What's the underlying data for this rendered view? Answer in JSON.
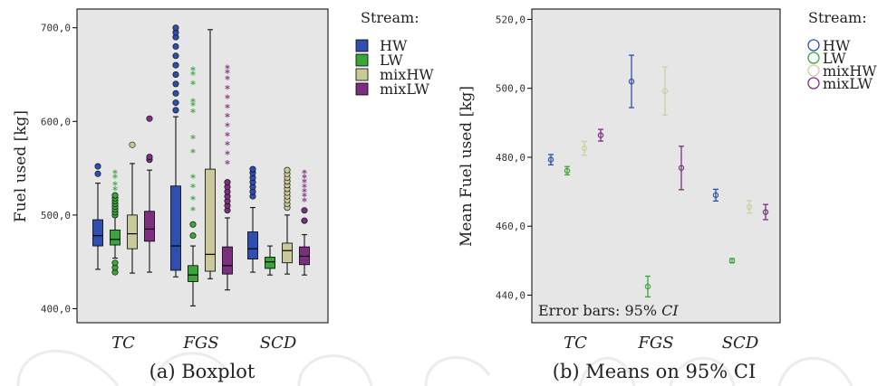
{
  "captions": {
    "a": "(a) Boxplot",
    "b": "(b) Means on 95% CI"
  },
  "chart_data": [
    {
      "type": "box",
      "ylabel": "Fuel used [kg]",
      "xlabel": "",
      "ylim": [
        385,
        720
      ],
      "yticks": [
        400,
        500,
        600,
        700
      ],
      "ytick_labels": [
        "400,0",
        "500,0",
        "600,0",
        "700,0"
      ],
      "categories": [
        "TC",
        "FGS",
        "SCD"
      ],
      "legend": {
        "title": "Stream:",
        "position": "right",
        "entries": [
          "HW",
          "LW",
          "mixHW",
          "mixLW"
        ]
      },
      "series_colors": {
        "HW": "#2f4fb0",
        "LW": "#3aa53a",
        "mixHW": "#c9c99a",
        "mixLW": "#7d2f7f"
      },
      "series": [
        {
          "name": "HW",
          "boxes": [
            {
              "min": 442,
              "q1": 467,
              "median": 478,
              "q3": 495,
              "max": 534,
              "outliers": [
                544,
                552
              ]
            },
            {
              "min": 434,
              "q1": 441,
              "median": 467,
              "q3": 531,
              "max": 605,
              "outliers": [
                612,
                620,
                630,
                640,
                650,
                660,
                670,
                680,
                690,
                695,
                700
              ]
            },
            {
              "min": 439,
              "q1": 453,
              "median": 464,
              "q3": 482,
              "max": 508,
              "outliers": [
                520,
                525,
                530,
                535,
                540,
                545,
                549
              ]
            }
          ]
        },
        {
          "name": "LW",
          "boxes": [
            {
              "min": 454,
              "q1": 468,
              "median": 474,
              "q3": 484,
              "max": 498,
              "outliers": [
                439,
                444,
                449,
                500,
                503,
                506,
                509,
                512,
                515,
                518,
                521
              ],
              "extremes": [
                527,
                532,
                540,
                545
              ]
            },
            {
              "min": 403,
              "q1": 429,
              "median": 436,
              "q3": 446,
              "max": 467,
              "outliers": [
                478,
                490
              ],
              "extremes": [
                505,
                517,
                530,
                540,
                567,
                582,
                610,
                617,
                621,
                640,
                650,
                655
              ]
            },
            {
              "min": 436,
              "q1": 443,
              "median": 450,
              "q3": 455,
              "max": 467,
              "outliers": [],
              "extremes": []
            }
          ]
        },
        {
          "name": "mixHW",
          "boxes": [
            {
              "min": 438,
              "q1": 464,
              "median": 480,
              "q3": 500,
              "max": 555,
              "outliers": [
                575
              ]
            },
            {
              "min": 432,
              "q1": 440,
              "median": 458,
              "q3": 549,
              "max": 698,
              "outliers": []
            },
            {
              "min": 437,
              "q1": 449,
              "median": 462,
              "q3": 470,
              "max": 500,
              "outliers": [
                508,
                512,
                516,
                520,
                524,
                528,
                532,
                536,
                540,
                544,
                548
              ]
            }
          ]
        },
        {
          "name": "mixLW",
          "boxes": [
            {
              "min": 439,
              "q1": 472,
              "median": 485,
              "q3": 504,
              "max": 548,
              "outliers": [
                559,
                562,
                603
              ]
            },
            {
              "min": 420,
              "q1": 437,
              "median": 446,
              "q3": 466,
              "max": 497,
              "outliers": [
                505,
                510,
                515,
                520,
                525,
                530,
                535
              ],
              "extremes": [
                555,
                565,
                575,
                585,
                595,
                605,
                615,
                625,
                635,
                645,
                652,
                657
              ]
            },
            {
              "min": 436,
              "q1": 447,
              "median": 456,
              "q3": 466,
              "max": 479,
              "outliers": [
                494,
                505
              ],
              "extremes": [
                515,
                520,
                525,
                530,
                535,
                540,
                545
              ]
            }
          ]
        }
      ]
    },
    {
      "type": "errorbar",
      "ylabel": "Mean Fuel used [kg]",
      "xlabel": "",
      "ylim": [
        432,
        523
      ],
      "yticks": [
        440,
        460,
        480,
        500,
        520
      ],
      "ytick_labels": [
        "440,0",
        "460,0",
        "480,0",
        "500,0",
        "520,0"
      ],
      "categories": [
        "TC",
        "FGS",
        "SCD"
      ],
      "annotation": {
        "text": "Error bars: 95% ",
        "ci": "CI"
      },
      "legend": {
        "title": "Stream:",
        "position": "right",
        "entries": [
          "HW",
          "LW",
          "mixHW",
          "mixLW"
        ]
      },
      "series": [
        {
          "name": "HW",
          "means": [
            479.3,
            502.0,
            469.0
          ],
          "ci_low": [
            477.8,
            494.4,
            467.3
          ],
          "ci_high": [
            480.8,
            509.6,
            470.7
          ]
        },
        {
          "name": "LW",
          "means": [
            476.1,
            442.5,
            450.0
          ],
          "ci_low": [
            474.9,
            439.5,
            449.4
          ],
          "ci_high": [
            477.3,
            445.5,
            450.6
          ]
        },
        {
          "name": "mixHW",
          "means": [
            482.6,
            499.2,
            465.6
          ],
          "ci_low": [
            480.6,
            492.2,
            463.8
          ],
          "ci_high": [
            484.6,
            506.2,
            467.4
          ]
        },
        {
          "name": "mixLW",
          "means": [
            486.4,
            476.9,
            464.1
          ],
          "ci_low": [
            484.7,
            470.6,
            461.9
          ],
          "ci_high": [
            488.1,
            483.2,
            466.3
          ]
        }
      ]
    }
  ]
}
